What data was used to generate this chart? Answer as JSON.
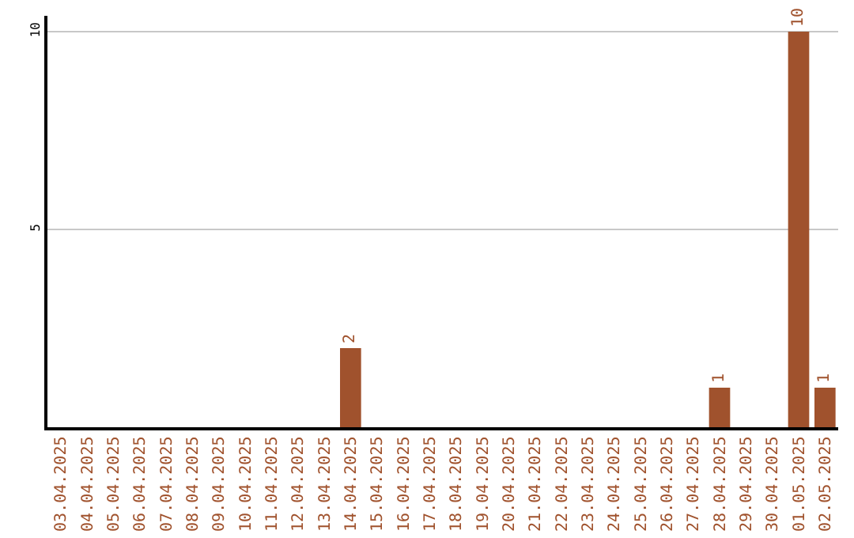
{
  "chart_data": {
    "type": "bar",
    "categories": [
      "03.04.2025",
      "04.04.2025",
      "05.04.2025",
      "06.04.2025",
      "07.04.2025",
      "08.04.2025",
      "09.04.2025",
      "10.04.2025",
      "11.04.2025",
      "12.04.2025",
      "13.04.2025",
      "14.04.2025",
      "15.04.2025",
      "16.04.2025",
      "17.04.2025",
      "18.04.2025",
      "19.04.2025",
      "20.04.2025",
      "21.04.2025",
      "22.04.2025",
      "23.04.2025",
      "24.04.2025",
      "25.04.2025",
      "26.04.2025",
      "27.04.2025",
      "28.04.2025",
      "29.04.2025",
      "30.04.2025",
      "01.05.2025",
      "02.05.2025"
    ],
    "values": [
      0,
      0,
      0,
      0,
      0,
      0,
      0,
      0,
      0,
      0,
      0,
      2,
      0,
      0,
      0,
      0,
      0,
      0,
      0,
      0,
      0,
      0,
      0,
      0,
      0,
      1,
      0,
      0,
      10,
      1
    ],
    "value_labels": [
      null,
      null,
      null,
      null,
      null,
      null,
      null,
      null,
      null,
      null,
      null,
      "2",
      null,
      null,
      null,
      null,
      null,
      null,
      null,
      null,
      null,
      null,
      null,
      null,
      null,
      "1",
      null,
      null,
      "10",
      "1"
    ],
    "color": "#a0522d",
    "ylim": [
      0,
      10.4
    ],
    "yticks": [
      5,
      10
    ],
    "grid": "y",
    "legend": false
  }
}
